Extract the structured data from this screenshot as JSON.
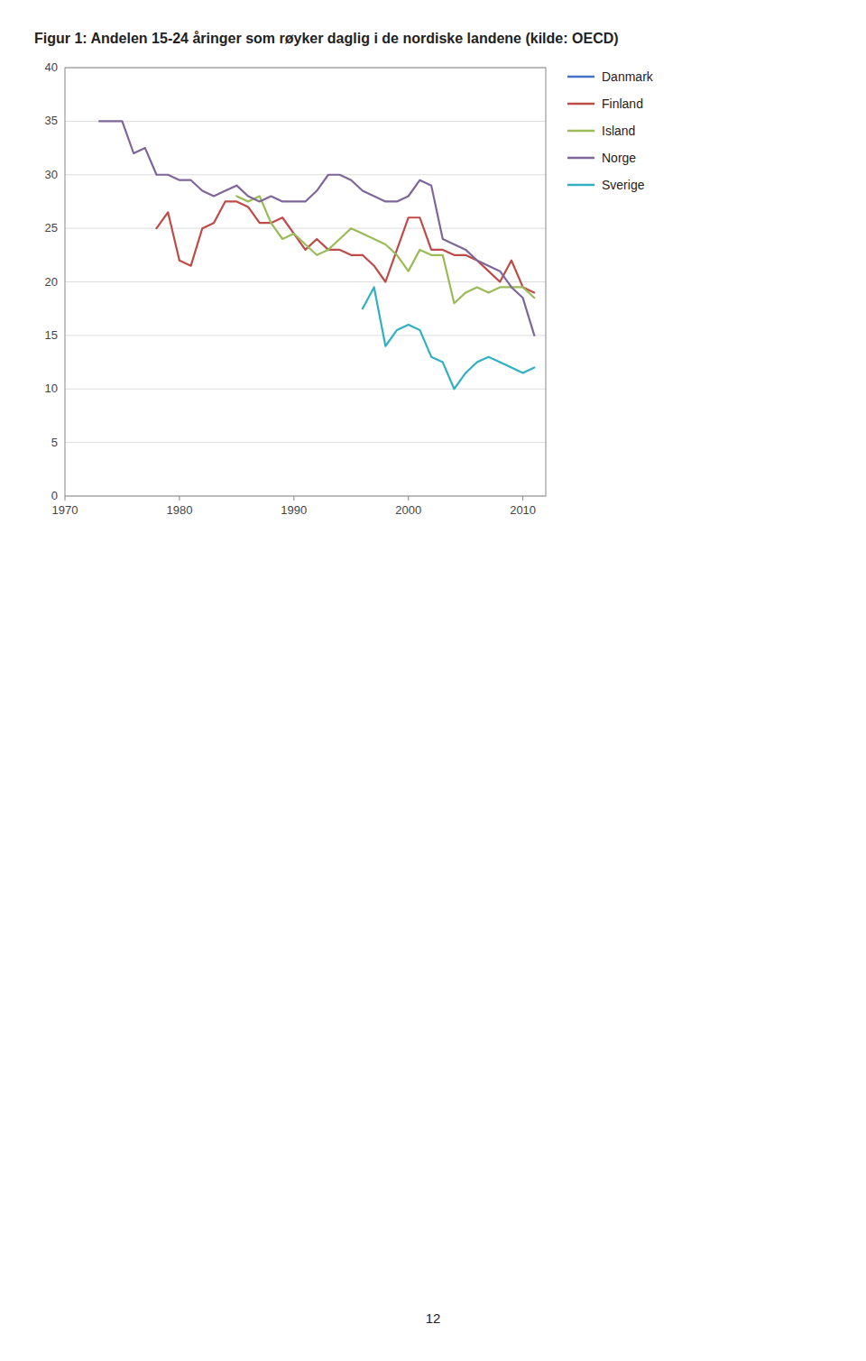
{
  "chart_data": {
    "type": "line",
    "title": "Figur 1: Andelen 15-24 åringer som røyker daglig i de nordiske landene (kilde: OECD)",
    "x": [
      1973,
      1974,
      1975,
      1976,
      1977,
      1978,
      1979,
      1980,
      1981,
      1982,
      1983,
      1984,
      1985,
      1986,
      1987,
      1988,
      1989,
      1990,
      1991,
      1992,
      1993,
      1994,
      1995,
      1996,
      1997,
      1998,
      1999,
      2000,
      2001,
      2002,
      2003,
      2004,
      2005,
      2006,
      2007,
      2008,
      2009,
      2010,
      2011
    ],
    "series": [
      {
        "name": "Danmark",
        "color": "#4472C4",
        "values": [
          null,
          null,
          null,
          null,
          null,
          null,
          null,
          null,
          null,
          null,
          null,
          null,
          null,
          null,
          null,
          null,
          null,
          null,
          null,
          null,
          null,
          null,
          null,
          null,
          null,
          null,
          null,
          null,
          null,
          null,
          null,
          null,
          null,
          null,
          null,
          null,
          null,
          null,
          null
        ]
      },
      {
        "name": "Finland",
        "color": "#BE4B48",
        "values": [
          null,
          null,
          null,
          null,
          null,
          25.0,
          26.5,
          22.0,
          21.5,
          25.0,
          25.5,
          27.5,
          27.5,
          27.0,
          25.5,
          25.5,
          26.0,
          24.5,
          23.0,
          24.0,
          23.0,
          23.0,
          22.5,
          22.5,
          21.5,
          20.0,
          23.0,
          26.0,
          26.0,
          23.0,
          23.0,
          22.5,
          22.5,
          22.0,
          21.0,
          20.0,
          22.0,
          19.5,
          19.0
        ]
      },
      {
        "name": "Island",
        "color": "#9BBB59",
        "values": [
          null,
          null,
          null,
          null,
          null,
          null,
          null,
          null,
          null,
          null,
          null,
          null,
          28.0,
          27.5,
          28.0,
          25.5,
          24.0,
          24.5,
          23.5,
          22.5,
          23.0,
          24.0,
          25.0,
          24.5,
          24.0,
          23.5,
          22.5,
          21.0,
          23.0,
          22.5,
          22.5,
          18.0,
          19.0,
          19.5,
          19.0,
          19.5,
          19.5,
          19.5,
          18.5
        ]
      },
      {
        "name": "Norge",
        "color": "#7E6699",
        "values": [
          35.0,
          35.0,
          35.0,
          32.0,
          32.5,
          30.0,
          30.0,
          29.5,
          29.5,
          28.5,
          28.0,
          28.5,
          29.0,
          28.0,
          27.5,
          28.0,
          27.5,
          27.5,
          27.5,
          28.5,
          30.0,
          30.0,
          29.5,
          28.5,
          28.0,
          27.5,
          27.5,
          28.0,
          29.5,
          29.0,
          24.0,
          23.5,
          23.0,
          22.0,
          21.5,
          21.0,
          19.5,
          18.5,
          15.0
        ]
      },
      {
        "name": "Sverige",
        "color": "#31B0C4",
        "values": [
          null,
          null,
          null,
          null,
          null,
          null,
          null,
          null,
          null,
          null,
          null,
          null,
          null,
          null,
          null,
          null,
          null,
          null,
          null,
          null,
          null,
          null,
          null,
          17.5,
          19.5,
          14.0,
          15.5,
          16.0,
          15.5,
          13.0,
          12.5,
          10.0,
          11.5,
          12.5,
          13.0,
          12.5,
          12.0,
          11.5,
          12.0
        ]
      }
    ],
    "xlim": [
      1970,
      2012
    ],
    "xticks": [
      1970,
      1980,
      1990,
      2000,
      2010
    ],
    "ylim": [
      0,
      40
    ],
    "yticks": [
      0,
      5,
      10,
      15,
      20,
      25,
      30,
      35,
      40
    ],
    "grid": "y",
    "legend": "right",
    "annotations": [
      "12"
    ]
  }
}
